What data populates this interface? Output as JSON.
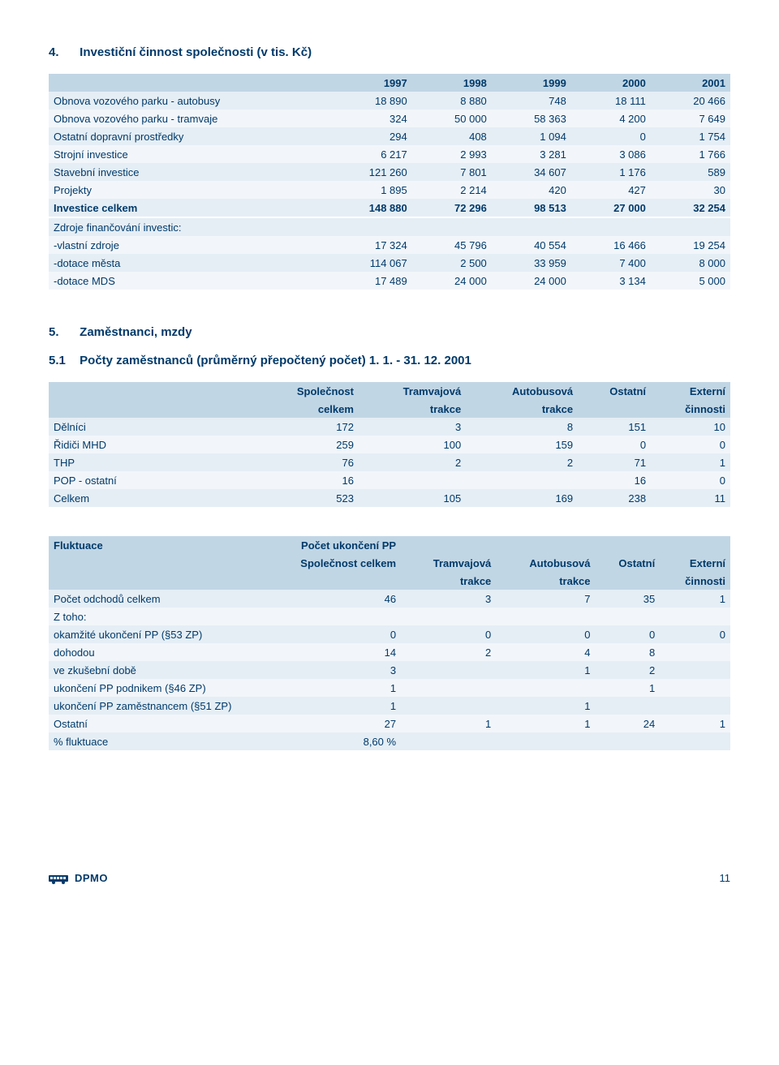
{
  "page_number": "11",
  "footer_logo_text": "DPMO",
  "colors": {
    "text": "#003a6a",
    "header_bg": "#c1d6e5",
    "row_odd": "#e5eef5",
    "row_even": "#f2f6fa",
    "page_bg": "#ffffff"
  },
  "section4": {
    "num": "4.",
    "title": "Investiční činnost společnosti (v tis. Kč)",
    "columns": [
      "1997",
      "1998",
      "1999",
      "2000",
      "2001"
    ],
    "rows": [
      {
        "label": "Obnova vozového parku - autobusy",
        "v": [
          "18 890",
          "8 880",
          "748",
          "18 111",
          "20 466"
        ],
        "bold": false
      },
      {
        "label": "Obnova vozového parku - tramvaje",
        "v": [
          "324",
          "50 000",
          "58 363",
          "4 200",
          "7 649"
        ],
        "bold": false
      },
      {
        "label": "Ostatní dopravní prostředky",
        "v": [
          "294",
          "408",
          "1 094",
          "0",
          "1 754"
        ],
        "bold": false
      },
      {
        "label": "Strojní investice",
        "v": [
          "6 217",
          "2 993",
          "3 281",
          "3 086",
          "1 766"
        ],
        "bold": false
      },
      {
        "label": "Stavební investice",
        "v": [
          "121 260",
          "7 801",
          "34 607",
          "1 176",
          "589"
        ],
        "bold": false
      },
      {
        "label": "Projekty",
        "v": [
          "1 895",
          "2 214",
          "420",
          "427",
          "30"
        ],
        "bold": false
      },
      {
        "label": "Investice celkem",
        "v": [
          "148 880",
          "72 296",
          "98 513",
          "27 000",
          "32 254"
        ],
        "bold": true
      }
    ],
    "rows2": [
      {
        "label": "Zdroje finančování investic:",
        "v": [
          "",
          "",
          "",
          "",
          ""
        ],
        "bold": false
      },
      {
        "label": "-vlastní zdroje",
        "v": [
          "17 324",
          "45 796",
          "40 554",
          "16 466",
          "19 254"
        ],
        "bold": false
      },
      {
        "label": "-dotace města",
        "v": [
          "114 067",
          "2 500",
          "33 959",
          "7 400",
          "8 000"
        ],
        "bold": false
      },
      {
        "label": "-dotace MDS",
        "v": [
          "17 489",
          "24 000",
          "24 000",
          "3 134",
          "5 000"
        ],
        "bold": false
      }
    ]
  },
  "section5": {
    "num": "5.",
    "title": "Zaměstnanci, mzdy",
    "sub_num": "5.1",
    "sub_title": "Počty zaměstnanců (průměrný přepočtený počet) 1. 1. - 31. 12. 2001",
    "header_top": [
      "Společnost",
      "Tramvajová",
      "Autobusová",
      "Ostatní",
      "Externí"
    ],
    "header_bot": [
      "celkem",
      "trakce",
      "trakce",
      "",
      "činnosti"
    ],
    "rows": [
      {
        "label": "Dělníci",
        "v": [
          "172",
          "3",
          "8",
          "151",
          "10"
        ]
      },
      {
        "label": "Řidiči MHD",
        "v": [
          "259",
          "100",
          "159",
          "0",
          "0"
        ]
      },
      {
        "label": "THP",
        "v": [
          "76",
          "2",
          "2",
          "71",
          "1"
        ]
      },
      {
        "label": "POP - ostatní",
        "v": [
          "16",
          "",
          "",
          "16",
          "0"
        ]
      },
      {
        "label": "Celkem",
        "v": [
          "523",
          "105",
          "169",
          "238",
          "11"
        ]
      }
    ]
  },
  "fluktuace": {
    "head1_label": "Fluktuace",
    "head1_cols": [
      "Počet ukončení PP",
      "",
      "",
      "",
      ""
    ],
    "head2_cols": [
      "Společnost celkem",
      "Tramvajová",
      "Autobusová",
      "Ostatní",
      "Externí"
    ],
    "head3_cols": [
      "",
      "trakce",
      "trakce",
      "",
      "činnosti"
    ],
    "rows": [
      {
        "label": "Počet odchodů celkem",
        "v": [
          "46",
          "3",
          "7",
          "35",
          "1"
        ]
      },
      {
        "label": "Z toho:",
        "v": [
          "",
          "",
          "",
          "",
          ""
        ]
      },
      {
        "label": "okamžité ukončení PP (§53 ZP)",
        "v": [
          "0",
          "0",
          "0",
          "0",
          "0"
        ]
      },
      {
        "label": "dohodou",
        "v": [
          "14",
          "2",
          "4",
          "8",
          ""
        ]
      },
      {
        "label": "ve zkušební době",
        "v": [
          "3",
          "",
          "1",
          "2",
          ""
        ]
      },
      {
        "label": "ukončení PP podnikem (§46 ZP)",
        "v": [
          "1",
          "",
          "",
          "1",
          ""
        ]
      },
      {
        "label": "ukončení PP zaměstnancem (§51 ZP)",
        "v": [
          "1",
          "",
          "1",
          "",
          ""
        ]
      },
      {
        "label": "Ostatní",
        "v": [
          "27",
          "1",
          "1",
          "24",
          "1"
        ]
      },
      {
        "label": "% fluktuace",
        "v": [
          "8,60 %",
          "",
          "",
          "",
          ""
        ]
      }
    ]
  }
}
